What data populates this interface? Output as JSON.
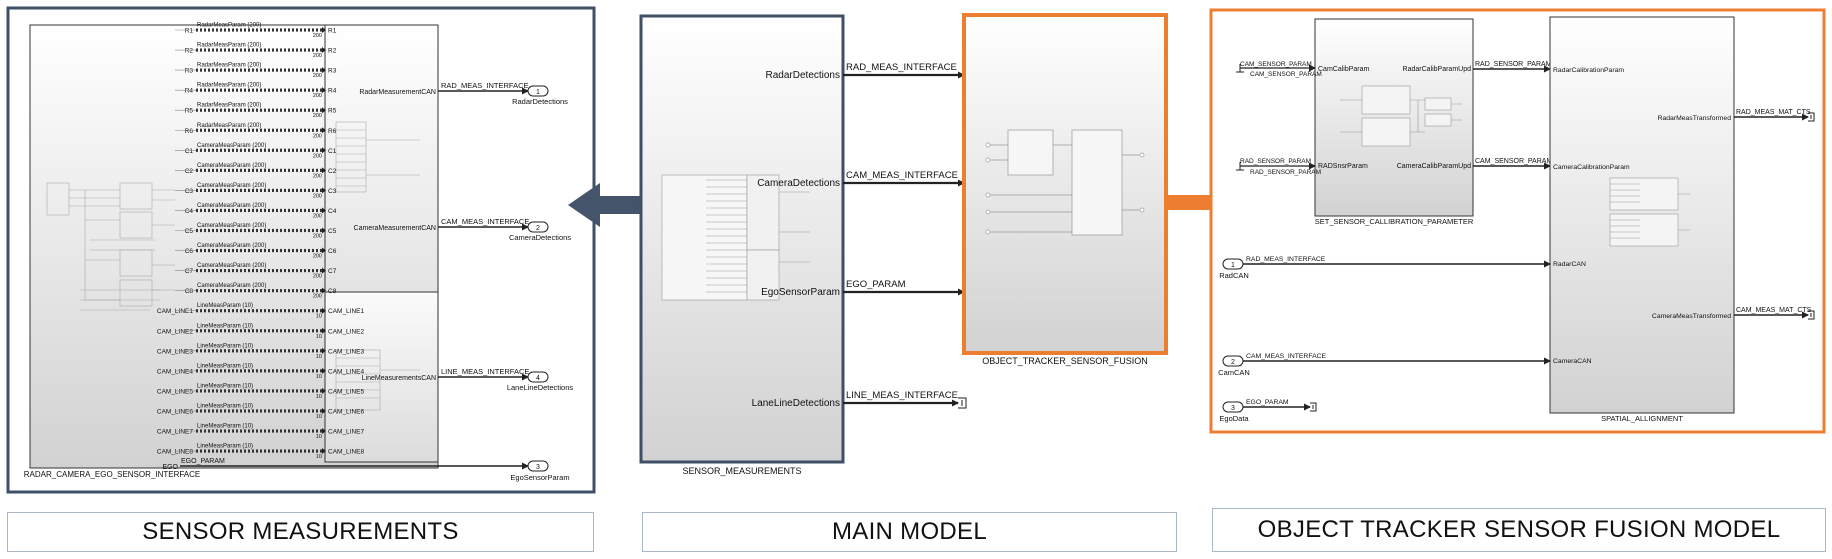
{
  "colors": {
    "panel_blue": "#3f4f66",
    "panel_orange": "#ed7d31",
    "arrow_blue": "#44546a",
    "arrow_orange": "#ed7d31",
    "line": "#222222"
  },
  "left": {
    "block_name": "RADAR_CAMERA_EGO_SENSOR_INTERFACE",
    "rows": [
      {
        "in": "R1",
        "bus": "RadarMeasParam (200)",
        "dim": "200",
        "out": "R1"
      },
      {
        "in": "R2",
        "bus": "RadarMeasParam (200)",
        "dim": "200",
        "out": "R2"
      },
      {
        "in": "R3",
        "bus": "RadarMeasParam (200)",
        "dim": "200",
        "out": "R3"
      },
      {
        "in": "R4",
        "bus": "RadarMeasParam (200)",
        "dim": "200",
        "out": "R4"
      },
      {
        "in": "R5",
        "bus": "RadarMeasParam (200)",
        "dim": "200",
        "out": "R5"
      },
      {
        "in": "R6",
        "bus": "RadarMeasParam (200)",
        "dim": "200",
        "out": "R6"
      },
      {
        "in": "C1",
        "bus": "CameraMeasParam (200)",
        "dim": "200",
        "out": "C1"
      },
      {
        "in": "C2",
        "bus": "CameraMeasParam (200)",
        "dim": "200",
        "out": "C2"
      },
      {
        "in": "C3",
        "bus": "CameraMeasParam (200)",
        "dim": "200",
        "out": "C3"
      },
      {
        "in": "C4",
        "bus": "CameraMeasParam (200)",
        "dim": "200",
        "out": "C4"
      },
      {
        "in": "C5",
        "bus": "CameraMeasParam (200)",
        "dim": "200",
        "out": "C5"
      },
      {
        "in": "C6",
        "bus": "CameraMeasParam (200)",
        "dim": "200",
        "out": "C6"
      },
      {
        "in": "C7",
        "bus": "CameraMeasParam (200)",
        "dim": "200",
        "out": "C7"
      },
      {
        "in": "C8",
        "bus": "CameraMeasParam (200)",
        "dim": "200",
        "out": "C8"
      },
      {
        "in": "CAM_LINE1",
        "bus": "LineMeasParam (10)",
        "dim": "10",
        "out": "CAM_LINE1"
      },
      {
        "in": "CAM_LINE2",
        "bus": "LineMeasParam (10)",
        "dim": "10",
        "out": "CAM_LINE2"
      },
      {
        "in": "CAM_LINE3",
        "bus": "LineMeasParam (10)",
        "dim": "10",
        "out": "CAM_LINE3"
      },
      {
        "in": "CAM_LINE4",
        "bus": "LineMeasParam (10)",
        "dim": "10",
        "out": "CAM_LINE4"
      },
      {
        "in": "CAM_LINE5",
        "bus": "LineMeasParam (10)",
        "dim": "10",
        "out": "CAM_LINE5"
      },
      {
        "in": "CAM_LINE6",
        "bus": "LineMeasParam (10)",
        "dim": "10",
        "out": "CAM_LINE6"
      },
      {
        "in": "CAM_LINE7",
        "bus": "LineMeasParam (10)",
        "dim": "10",
        "out": "CAM_LINE7"
      },
      {
        "in": "CAM_LINE8",
        "bus": "LineMeasParam (10)",
        "dim": "10",
        "out": "CAM_LINE8"
      }
    ],
    "radar_port": "RadarMeasurementCAN",
    "radar_signal": "RAD_MEAS_INTERFACE",
    "radar_out": {
      "num": "1",
      "name": "RadarDetections"
    },
    "camera_port": "CameraMeasurementCAN",
    "camera_signal": "CAM_MEAS_INTERFACE",
    "camera_out": {
      "num": "2",
      "name": "CameraDetections"
    },
    "line_port": "LineMeasurementsCAN",
    "line_signal": "LINE_MEAS_INTERFACE",
    "line_out": {
      "num": "4",
      "name": "LaneLineDetections"
    },
    "ego_in": "EGO",
    "ego_signal": "EGO_PARAM",
    "ego_out": {
      "num": "3",
      "name": "EgoSensorParam"
    }
  },
  "middle": {
    "block_name": "SENSOR_MEASUREMENTS",
    "ports": [
      "RadarDetections",
      "CameraDetections",
      "EgoSensorParam",
      "LaneLineDetections"
    ],
    "signals": [
      "RAD_MEAS_INTERFACE",
      "CAM_MEAS_INTERFACE",
      "EGO_PARAM",
      "LINE_MEAS_INTERFACE"
    ],
    "fusion_block_name": "OBJECT_TRACKER_SENSOR_FUSION",
    "fusion_ports": [
      "RadCAN",
      "CamCAN",
      "EgoData"
    ]
  },
  "right": {
    "calib_block_name": "SET_SENSOR_CALLIBRATION_PARAMETER",
    "calib_in_ports": [
      "CamCalibParam",
      "RADSnsrParam"
    ],
    "calib_out_ports": [
      "RadarCalibParamUpd",
      "CameraCalibParamUpd"
    ],
    "cam_const": "CAM_SENSOR_PARAM",
    "rad_const": "RAD_SENSOR_PARAM",
    "rad_sensor_signal": "RAD_SENSOR_PARAM",
    "cam_sensor_signal": "CAM_SENSOR_PARAM",
    "align_block_name": "SPATIAL_ALLIGNMENT",
    "align_in_ports": [
      "RadarCalibrationParam",
      "CameraCalibrationParam",
      "RadarCAN",
      "CameraCAN"
    ],
    "align_out_ports": [
      "RadarMeasTransformed",
      "CameraMeasTransformed"
    ],
    "out_signals": [
      "RAD_MEAS_MAT_CTS",
      "CAM_MEAS_MAT_CTS"
    ],
    "inports": [
      {
        "num": "1",
        "name": "RadCAN",
        "signal": "RAD_MEAS_INTERFACE"
      },
      {
        "num": "2",
        "name": "CamCAN",
        "signal": "CAM_MEAS_INTERFACE"
      },
      {
        "num": "3",
        "name": "EgoData",
        "signal": "EGO_PARAM"
      }
    ]
  },
  "captions": {
    "left": "SENSOR MEASUREMENTS",
    "middle": "MAIN MODEL",
    "right": "OBJECT TRACKER SENSOR FUSION MODEL"
  }
}
